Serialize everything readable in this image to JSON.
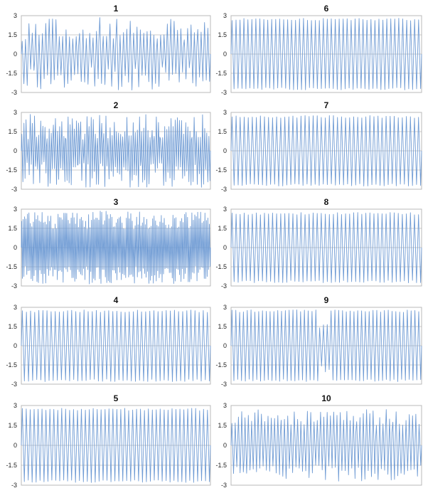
{
  "figure": {
    "colors": {
      "series": "#6f9bd4",
      "grid": "#9a9a9a",
      "frame": "#b9b9b9"
    }
  },
  "chart_data": [
    {
      "type": "line",
      "title": "1",
      "ylim": [
        -3,
        3
      ],
      "yticks": [
        "3",
        "1.5",
        "0",
        "-1.5",
        "-3"
      ],
      "grid": true,
      "amplitude_max": 2.85,
      "cycles": 56,
      "pattern": "irregular"
    },
    {
      "type": "line",
      "title": "2",
      "ylim": [
        -3,
        3
      ],
      "yticks": [
        "3",
        "1.5",
        "0",
        "-1.5",
        "-3"
      ],
      "grid": true,
      "amplitude_max": 2.85,
      "cycles": 90,
      "pattern": "dense-irregular"
    },
    {
      "type": "line",
      "title": "3",
      "ylim": [
        -3,
        3
      ],
      "yticks": [
        "3",
        "1.5",
        "0",
        "-1.5",
        "-3"
      ],
      "grid": true,
      "amplitude_max": 2.85,
      "cycles": 130,
      "pattern": "very-dense"
    },
    {
      "type": "line",
      "title": "4",
      "ylim": [
        -3,
        3
      ],
      "yticks": [
        "3",
        "1.5",
        "0",
        "-1.5",
        "-3"
      ],
      "grid": true,
      "amplitude_max": 2.8,
      "cycles": 46,
      "pattern": "regular"
    },
    {
      "type": "line",
      "title": "5",
      "ylim": [
        -3,
        3
      ],
      "yticks": [
        "3",
        "1.5",
        "0",
        "-1.5",
        "-3"
      ],
      "grid": true,
      "amplitude_max": 2.8,
      "cycles": 48,
      "pattern": "regular"
    },
    {
      "type": "line",
      "title": "6",
      "ylim": [
        -3,
        3
      ],
      "yticks": [
        "3",
        "1.5",
        "0",
        "-1.5",
        "-3"
      ],
      "grid": true,
      "amplitude_max": 2.8,
      "cycles": 48,
      "pattern": "regular"
    },
    {
      "type": "line",
      "title": "7",
      "ylim": [
        -3,
        3
      ],
      "yticks": [
        "3",
        "1.5",
        "0",
        "-1.5",
        "-3"
      ],
      "grid": true,
      "amplitude_max": 2.75,
      "cycles": 47,
      "pattern": "regular"
    },
    {
      "type": "line",
      "title": "8",
      "ylim": [
        -3,
        3
      ],
      "yticks": [
        "3",
        "1.5",
        "0",
        "-1.5",
        "-3"
      ],
      "grid": true,
      "amplitude_max": 2.75,
      "cycles": 47,
      "pattern": "regular"
    },
    {
      "type": "line",
      "title": "9",
      "ylim": [
        -3,
        3
      ],
      "yticks": [
        "3",
        "1.5",
        "0",
        "-1.5",
        "-3"
      ],
      "grid": true,
      "amplitude_max": 2.8,
      "cycles": 50,
      "pattern": "regular-with-glitch"
    },
    {
      "type": "line",
      "title": "10",
      "ylim": [
        -3,
        3
      ],
      "yticks": [
        "3",
        "1.5",
        "0",
        "-1.5",
        "-3"
      ],
      "grid": true,
      "amplitude_max": 2.7,
      "cycles": 58,
      "pattern": "semi-irregular"
    }
  ]
}
